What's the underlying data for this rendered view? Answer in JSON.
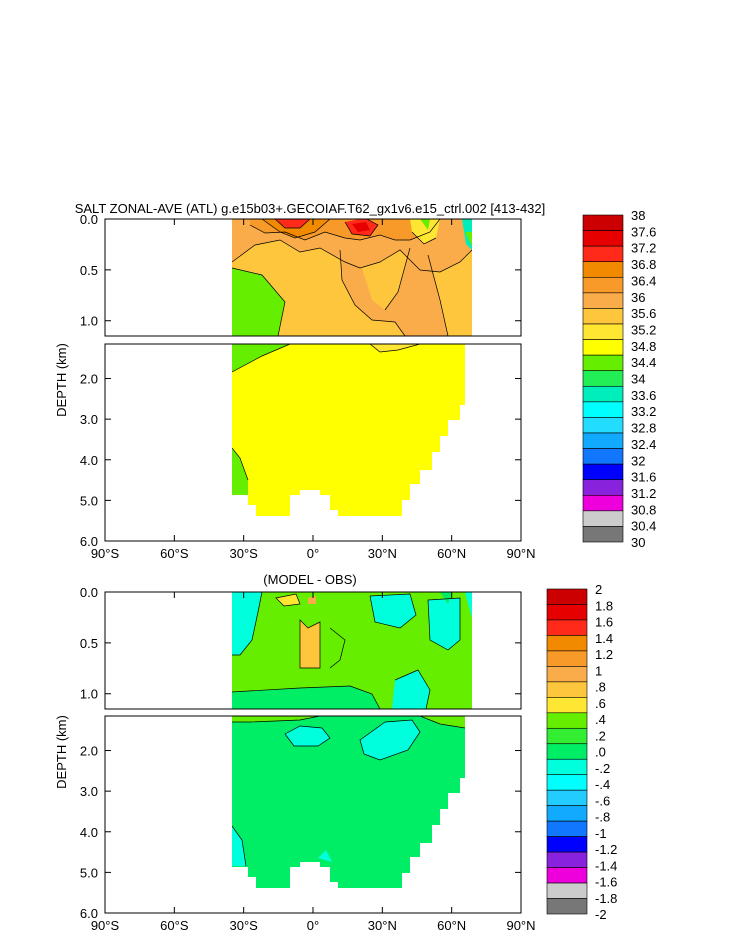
{
  "chart_data": [
    {
      "type": "heatmap",
      "title": "SALT ZONAL-AVE (ATL) g.e15b03+.GECOIAF.T62_gx1v6.e15_ctrl.002 [413-432]",
      "ylabel": "DEPTH (km)",
      "xlabel": "",
      "x_ticks": [
        "90°S",
        "60°S",
        "30°S",
        "0°",
        "30°N",
        "60°N",
        "90°N"
      ],
      "x_range": [
        -90,
        90
      ],
      "upper_panel": {
        "ylim": [
          0,
          1.15
        ],
        "y_ticks": [
          "0.0",
          "0.5",
          "1.0"
        ],
        "y_values": [
          0,
          0.5,
          1.0
        ]
      },
      "lower_panel": {
        "ylim": [
          1.15,
          6.0
        ],
        "y_ticks": [
          "2.0",
          "3.0",
          "4.0",
          "5.0",
          "6.0"
        ],
        "y_values": [
          2,
          3,
          4,
          5,
          6
        ]
      },
      "colorbar": {
        "labels": [
          "38",
          "37.6",
          "37.2",
          "36.8",
          "36.4",
          "36",
          "35.6",
          "35.2",
          "34.8",
          "34.4",
          "34",
          "33.6",
          "33.2",
          "32.8",
          "32.4",
          "32",
          "31.6",
          "31.2",
          "30.8",
          "30.4",
          "30"
        ],
        "colors": [
          "#cc0000",
          "#e60000",
          "#ff2a1a",
          "#f28a00",
          "#f79a2a",
          "#fbac4a",
          "#fdc63c",
          "#ffe633",
          "#ffff00",
          "#66ee00",
          "#22ee55",
          "#00eebb",
          "#00ffff",
          "#22ddff",
          "#11aaff",
          "#1177ff",
          "#0000ff",
          "#8822dd",
          "#ee00dd",
          "#cccccc",
          "#777777"
        ]
      }
    },
    {
      "type": "heatmap",
      "title": "(MODEL - OBS)",
      "ylabel": "DEPTH (km)",
      "xlabel": "",
      "x_ticks": [
        "90°S",
        "60°S",
        "30°S",
        "0°",
        "30°N",
        "60°N",
        "90°N"
      ],
      "x_range": [
        -90,
        90
      ],
      "upper_panel": {
        "ylim": [
          0,
          1.15
        ],
        "y_ticks": [
          "0.0",
          "0.5",
          "1.0"
        ],
        "y_values": [
          0,
          0.5,
          1.0
        ]
      },
      "lower_panel": {
        "ylim": [
          1.15,
          6.0
        ],
        "y_ticks": [
          "2.0",
          "3.0",
          "4.0",
          "5.0",
          "6.0"
        ],
        "y_values": [
          2,
          3,
          4,
          5,
          6
        ]
      },
      "colorbar": {
        "labels": [
          "2",
          "1.8",
          "1.6",
          "1.4",
          "1.2",
          "1",
          ".8",
          ".6",
          ".4",
          ".2",
          ".0",
          "-.2",
          "-.4",
          "-.6",
          "-.8",
          "-1",
          "-1.2",
          "-1.4",
          "-1.6",
          "-1.8",
          "-2"
        ],
        "colors": [
          "#cc0000",
          "#e60000",
          "#ff2a1a",
          "#f28a00",
          "#f79a2a",
          "#fbac4a",
          "#fdc63c",
          "#ffe633",
          "#66ee00",
          "#33ee33",
          "#00ee66",
          "#00ffdd",
          "#00ffff",
          "#22ccff",
          "#11aaff",
          "#1177ff",
          "#0000ff",
          "#8822dd",
          "#ee00dd",
          "#cccccc",
          "#777777"
        ]
      }
    }
  ]
}
